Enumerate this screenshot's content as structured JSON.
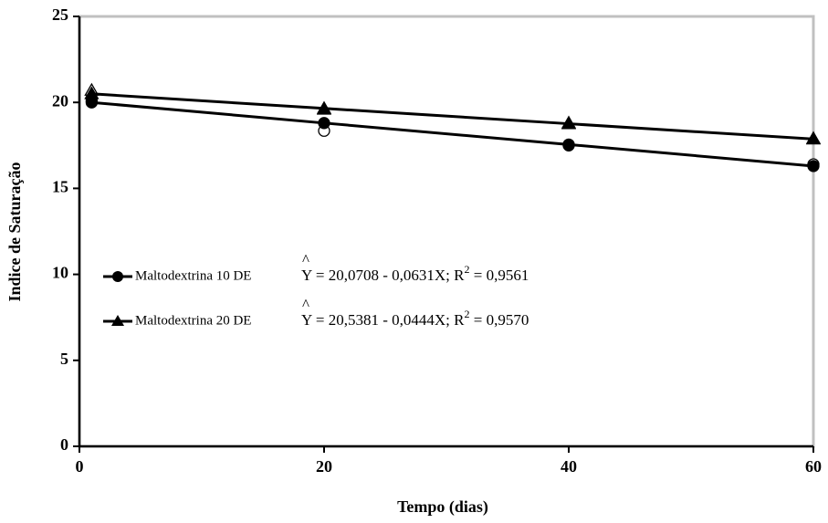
{
  "chart_data": {
    "type": "line",
    "x_label": "Tempo (dias)",
    "y_label": "Indice de Saturação",
    "x": [
      1,
      20,
      40,
      60
    ],
    "xlim": [
      0,
      60
    ],
    "xticks": [
      0,
      20,
      40,
      60
    ],
    "ylim": [
      0,
      25
    ],
    "yticks": [
      0,
      5,
      10,
      15,
      20,
      25
    ],
    "series": [
      {
        "name": "Maltodextrina 10 DE",
        "color": "#000000",
        "marker": "circle",
        "values": [
          20.0,
          18.8,
          17.55,
          16.3
        ],
        "observed": [
          20.1,
          18.35,
          17.5,
          16.4
        ],
        "equation": {
          "lhs": "Y",
          "hat": "^",
          "rhs": " = 20,0708 - 0,0631X; R",
          "sup": "2",
          "end": " = 0,9561"
        }
      },
      {
        "name": "Maltodextrina 20 DE",
        "color": "#000000",
        "marker": "triangle",
        "values": [
          20.5,
          19.65,
          18.76,
          17.87
        ],
        "observed": [
          20.7,
          19.6,
          18.8,
          17.9
        ],
        "equation": {
          "lhs": "Y",
          "hat": "^",
          "rhs": " = 20,5381 - 0,0444X; R",
          "sup": "2",
          "end": " = 0,9570"
        }
      }
    ]
  }
}
